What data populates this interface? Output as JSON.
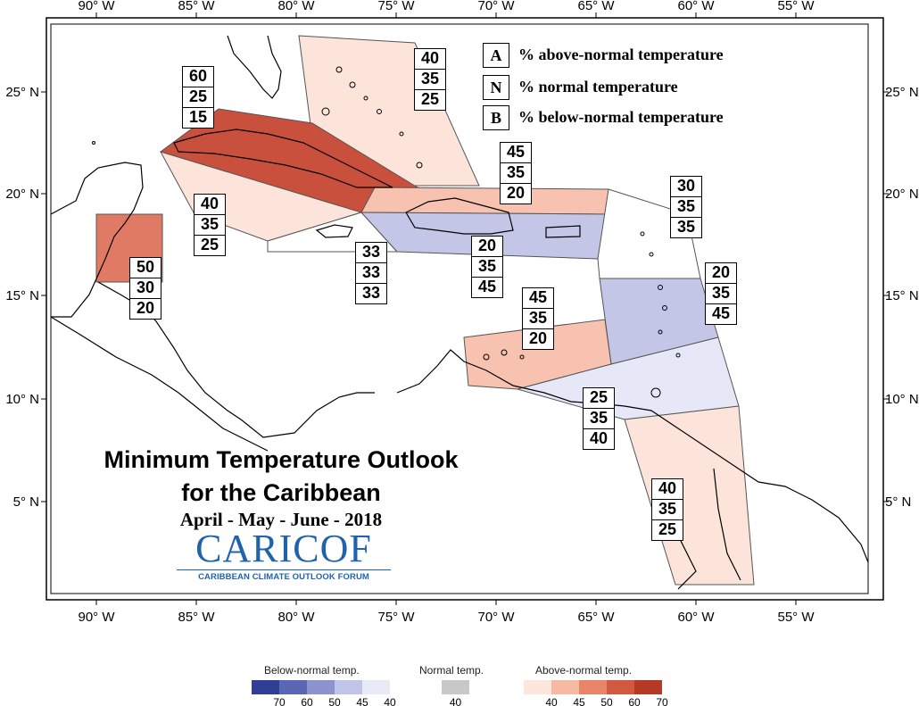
{
  "title": {
    "line1": "Minimum Temperature Outlook",
    "line2": "for the Caribbean",
    "period": "April - May - June - 2018"
  },
  "logo": {
    "main": "CARICOF",
    "sub": "CARIBBEAN CLIMATE OUTLOOK FORUM"
  },
  "key": [
    {
      "letter": "A",
      "text": "% above-normal temperature"
    },
    {
      "letter": "N",
      "text": "% normal temperature"
    },
    {
      "letter": "B",
      "text": "% below-normal temperature"
    }
  ],
  "axes": {
    "lon_ticks": [
      "90° W",
      "85° W",
      "80° W",
      "75° W",
      "70° W",
      "65° W",
      "60° W",
      "55° W"
    ],
    "lat_ticks": [
      "25° N",
      "20° N",
      "15° N",
      "10° N",
      "5° N"
    ]
  },
  "regions": [
    {
      "name": "bahamas",
      "A": "40",
      "N": "35",
      "B": "25",
      "fill": "#fce4da"
    },
    {
      "name": "cuba",
      "A": "60",
      "N": "25",
      "B": "15",
      "fill": "#c8503c"
    },
    {
      "name": "cayman-jamaica-west",
      "A": "40",
      "N": "35",
      "B": "25",
      "fill": "#fce4da"
    },
    {
      "name": "belize",
      "A": "50",
      "N": "30",
      "B": "20",
      "fill": "#e17a64"
    },
    {
      "name": "jamaica",
      "A": "33",
      "N": "33",
      "B": "33",
      "fill": "#ffffff"
    },
    {
      "name": "hispaniola-north",
      "A": "45",
      "N": "35",
      "B": "20",
      "fill": "#f7c2b0"
    },
    {
      "name": "hispaniola-pr",
      "A": "20",
      "N": "35",
      "B": "45",
      "fill": "#c4c6e8"
    },
    {
      "name": "leeward-north",
      "A": "30",
      "N": "35",
      "B": "35",
      "fill": "#ffffff"
    },
    {
      "name": "windward",
      "A": "20",
      "N": "35",
      "B": "45",
      "fill": "#c4c6e8"
    },
    {
      "name": "abc-islands",
      "A": "45",
      "N": "35",
      "B": "20",
      "fill": "#f7c2b0"
    },
    {
      "name": "trinidad",
      "A": "25",
      "N": "35",
      "B": "40",
      "fill": "#e6e8f7"
    },
    {
      "name": "guianas",
      "A": "40",
      "N": "35",
      "B": "25",
      "fill": "#fce4da"
    }
  ],
  "colorbar": {
    "below": {
      "label": "Below-normal temp.",
      "ticks": [
        "70",
        "60",
        "50",
        "45",
        "40"
      ],
      "colors": [
        "#2f3f93",
        "#5b67b5",
        "#8c93cf",
        "#c0c4e6",
        "#e8eaf6"
      ]
    },
    "normal": {
      "label": "Normal temp.",
      "ticks": [
        "40"
      ],
      "colors": [
        "#c8c8c8"
      ]
    },
    "above": {
      "label": "Above-normal temp.",
      "ticks": [
        "40",
        "45",
        "50",
        "60",
        "70"
      ],
      "colors": [
        "#fde7dc",
        "#f6b9a2",
        "#e88469",
        "#d05a40",
        "#b53a26"
      ]
    }
  }
}
